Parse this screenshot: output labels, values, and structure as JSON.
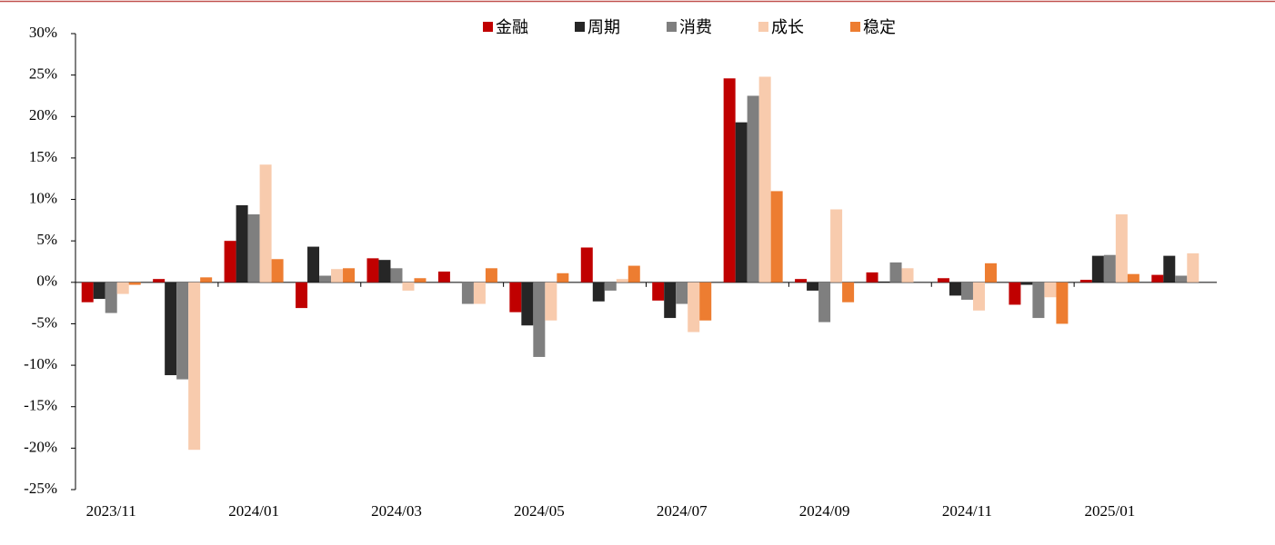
{
  "chart_data": {
    "type": "bar",
    "categories": [
      "2023/11",
      null,
      "2024/01",
      null,
      "2024/03",
      null,
      "2024/05",
      null,
      "2024/07",
      null,
      "2024/09",
      null,
      "2024/11",
      null,
      "2025/01",
      null
    ],
    "series": [
      {
        "name": "金融",
        "color": "#c00000",
        "values": [
          -2.4,
          0.4,
          5.0,
          -3.1,
          2.9,
          1.3,
          -3.6,
          4.2,
          -2.2,
          24.6,
          0.4,
          1.2,
          0.5,
          -2.7,
          0.3,
          0.9
        ]
      },
      {
        "name": "周期",
        "color": "#262626",
        "values": [
          -2.0,
          -11.2,
          9.3,
          4.3,
          2.7,
          0.0,
          -5.2,
          -2.3,
          -4.3,
          19.3,
          -1.0,
          0.1,
          -1.6,
          -0.3,
          3.2,
          3.2
        ]
      },
      {
        "name": "消费",
        "color": "#7f7f7f",
        "values": [
          -3.7,
          -11.7,
          8.2,
          0.8,
          1.7,
          -2.6,
          -9.0,
          -1.0,
          -2.6,
          22.5,
          -4.8,
          2.4,
          -2.1,
          -4.3,
          3.3,
          0.8
        ]
      },
      {
        "name": "成长",
        "color": "#f8cbad",
        "values": [
          -1.4,
          -20.2,
          14.2,
          1.6,
          -1.0,
          -2.6,
          -4.6,
          0.4,
          -6.0,
          24.8,
          8.8,
          1.7,
          -3.4,
          -1.8,
          8.2,
          3.5
        ]
      },
      {
        "name": "稳定",
        "color": "#ed7d31",
        "values": [
          -0.3,
          0.6,
          2.8,
          1.7,
          0.5,
          1.7,
          1.1,
          2.0,
          -4.6,
          11.0,
          -2.4,
          0.0,
          2.3,
          -5.0,
          1.0,
          0.0
        ]
      }
    ],
    "ylim": [
      -25,
      30
    ],
    "yticks": [
      {
        "value": -25,
        "label": "-25%"
      },
      {
        "value": -20,
        "label": "-20%"
      },
      {
        "value": -15,
        "label": "-15%"
      },
      {
        "value": -10,
        "label": "-10%"
      },
      {
        "value": -5,
        "label": "-5%"
      },
      {
        "value": 0,
        "label": "0%"
      },
      {
        "value": 5,
        "label": "5%"
      },
      {
        "value": 10,
        "label": "10%"
      },
      {
        "value": 15,
        "label": "15%"
      },
      {
        "value": 20,
        "label": "20%"
      },
      {
        "value": 25,
        "label": "25%"
      },
      {
        "value": 30,
        "label": "30%"
      }
    ],
    "legend": "top"
  }
}
